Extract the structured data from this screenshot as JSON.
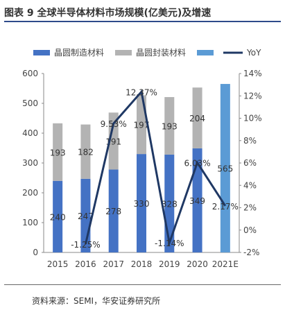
{
  "header": {
    "title": "图表 9 全球半导体材料市场规模(亿美元)及增速"
  },
  "footer": {
    "source": "资料来源：SEMI，华安证券研究所"
  },
  "colors": {
    "wafer": "#4472c4",
    "packaging": "#b3b3b3",
    "total_2021e": "#5b9bd5",
    "yoy": "#1f3864"
  },
  "chart_data": {
    "type": "bar",
    "stacked": true,
    "categories": [
      "2015",
      "2016",
      "2017",
      "2018",
      "2019",
      "2020",
      "2021E"
    ],
    "series": [
      {
        "name": "晶圆制造材料",
        "values": [
          240,
          247,
          278,
          330,
          328,
          349,
          null
        ],
        "labels": [
          "240",
          "247",
          "278",
          "330",
          "328",
          "349",
          ""
        ]
      },
      {
        "name": "晶圆封装材料",
        "values": [
          193,
          182,
          191,
          197,
          193,
          204,
          null
        ],
        "labels": [
          "193",
          "182",
          "191",
          "197",
          "193",
          "204",
          ""
        ]
      },
      {
        "name": "",
        "values": [
          null,
          null,
          null,
          null,
          null,
          null,
          565
        ],
        "labels": [
          "",
          "",
          "",
          "",
          "",
          "",
          "565"
        ]
      },
      {
        "name": "YoY",
        "type": "line",
        "axis": "right",
        "values": [
          null,
          -1.25,
          9.53,
          12.37,
          -1.14,
          6.03,
          2.17
        ],
        "labels": [
          "",
          "-1.25%",
          "9.53%",
          "12.37%",
          "-1.14%",
          "6.03%",
          "2.17%"
        ]
      }
    ],
    "legend": [
      "晶圆制造材料",
      "晶圆封装材料",
      "",
      "YoY"
    ],
    "legend_position": "top",
    "y_left": {
      "ticks": [
        "0",
        "100",
        "200",
        "300",
        "400",
        "500",
        "600"
      ],
      "lim": [
        0,
        600
      ]
    },
    "y_right": {
      "ticks": [
        "-2%",
        "0%",
        "2%",
        "4%",
        "6%",
        "8%",
        "10%",
        "12%",
        "14%"
      ],
      "lim": [
        -2,
        14
      ]
    },
    "grid": false
  }
}
